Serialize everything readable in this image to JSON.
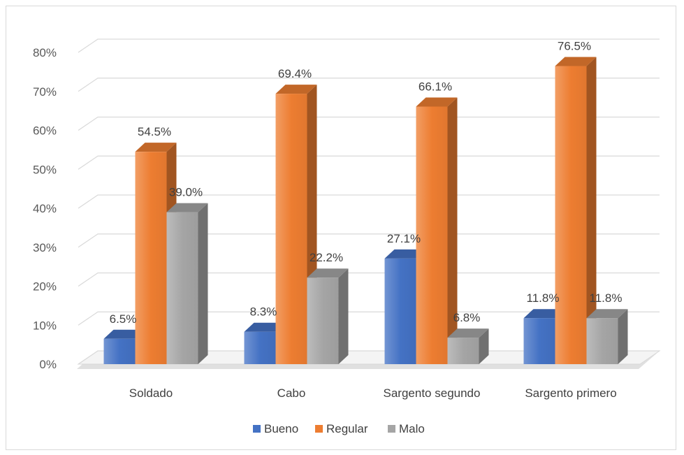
{
  "chart_data": {
    "type": "bar",
    "style": "3d-clustered-column",
    "categories": [
      "Soldado",
      "Cabo",
      "Sargento segundo",
      "Sargento primero"
    ],
    "series": [
      {
        "name": "Bueno",
        "color": "#4472C4",
        "values": [
          6.5,
          8.3,
          27.1,
          11.8
        ],
        "labels": [
          "6.5%",
          "8.3%",
          "27.1%",
          "11.8%"
        ]
      },
      {
        "name": "Regular",
        "color": "#ED7D31",
        "values": [
          54.5,
          69.4,
          66.1,
          76.5
        ],
        "labels": [
          "54.5%",
          "69.4%",
          "66.1%",
          "76.5%"
        ]
      },
      {
        "name": "Malo",
        "color": "#A5A5A5",
        "values": [
          39.0,
          22.2,
          6.8,
          11.8
        ],
        "labels": [
          "39.0%",
          "22.2%",
          "6.8%",
          "11.8%"
        ]
      }
    ],
    "yticks": [
      "0%",
      "10%",
      "20%",
      "30%",
      "40%",
      "50%",
      "60%",
      "70%",
      "80%"
    ],
    "ylim": [
      0,
      80
    ],
    "grid": true,
    "legend": "bottom"
  }
}
